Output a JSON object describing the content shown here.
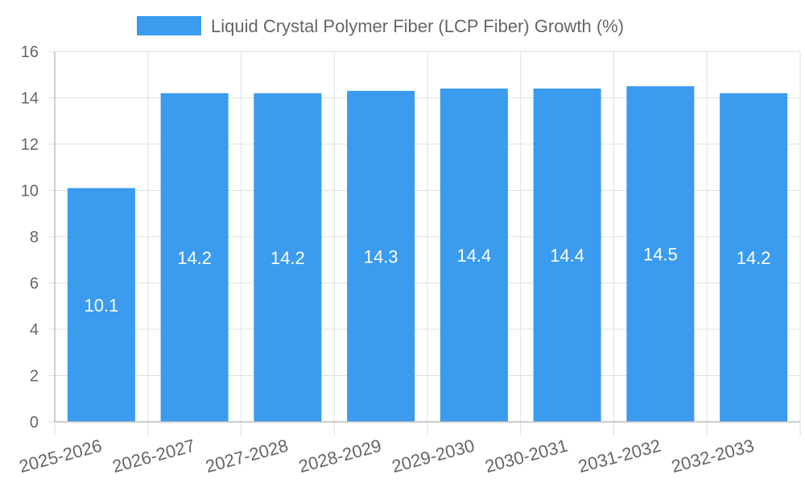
{
  "chart_data": {
    "type": "bar",
    "categories": [
      "2025-2026",
      "2026-2027",
      "2027-2028",
      "2028-2029",
      "2029-2030",
      "2030-2031",
      "2031-2032",
      "2032-2033"
    ],
    "series": [
      {
        "name": "Liquid Crystal Polymer Fiber (LCP Fiber) Growth (%)",
        "values": [
          10.1,
          14.2,
          14.2,
          14.3,
          14.4,
          14.4,
          14.5,
          14.2
        ],
        "color": "#3a9bef"
      }
    ],
    "yticks": [
      "0",
      "2",
      "4",
      "6",
      "8",
      "10",
      "12",
      "14",
      "16"
    ],
    "ylim": [
      0,
      16
    ],
    "grid": true,
    "legend": "top-center",
    "data_labels": true,
    "colors": {
      "grid": "#e1e1e1",
      "axis": "#bdbdbd",
      "text": "#666666",
      "label": "#ffffff"
    }
  }
}
